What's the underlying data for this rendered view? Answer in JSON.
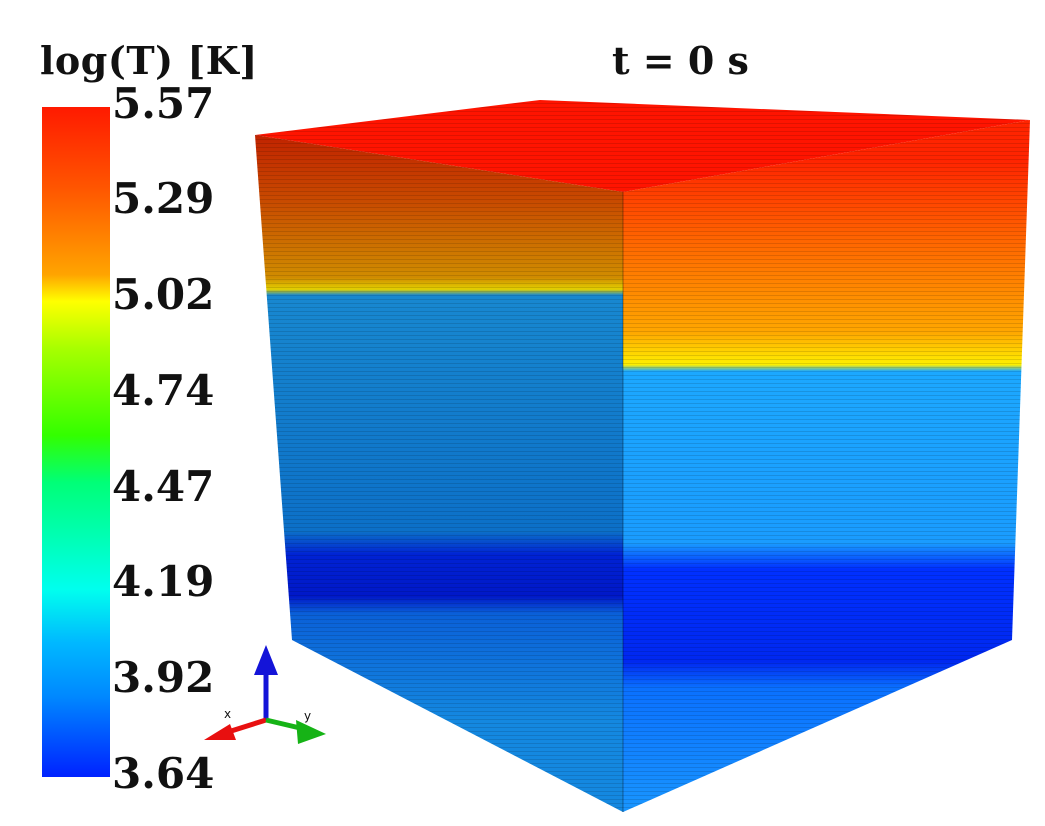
{
  "colorbar": {
    "title": "log(T) [K]",
    "ticks": [
      "5.57",
      "5.29",
      "5.02",
      "4.74",
      "4.47",
      "4.19",
      "3.92",
      "3.64"
    ]
  },
  "view": {
    "time_label": "t = 0 s"
  },
  "axes_triad": {
    "x_label": "x",
    "y_label": "y",
    "x_color": "#e81010",
    "y_color": "#16b316",
    "z_color": "#1414d8"
  },
  "colors": {
    "hot": "#ff1a00",
    "warm": "#ff8c00",
    "transition": "#ffff00",
    "cool": "#1aa0ff",
    "cold": "#0022ff"
  }
}
